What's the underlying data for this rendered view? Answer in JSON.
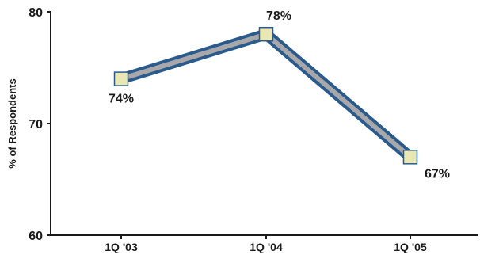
{
  "chart_data": {
    "type": "line",
    "categories": [
      "1Q '03",
      "1Q '04",
      "1Q '05"
    ],
    "series": [
      {
        "values": [
          74,
          78,
          67
        ]
      }
    ],
    "data_labels": [
      "74%",
      "78%",
      "67%"
    ],
    "ylabel": "% of Respondents",
    "ylim": [
      60,
      80
    ],
    "yticks": [
      60,
      70,
      80
    ],
    "grid": false,
    "colors": {
      "line_outer": "#2a5b8c",
      "line_inner": "#a8a8ab",
      "marker_fill": "#e9e7b4",
      "marker_stroke": "#2a5b8c",
      "axis": "#1a1a1a"
    }
  }
}
